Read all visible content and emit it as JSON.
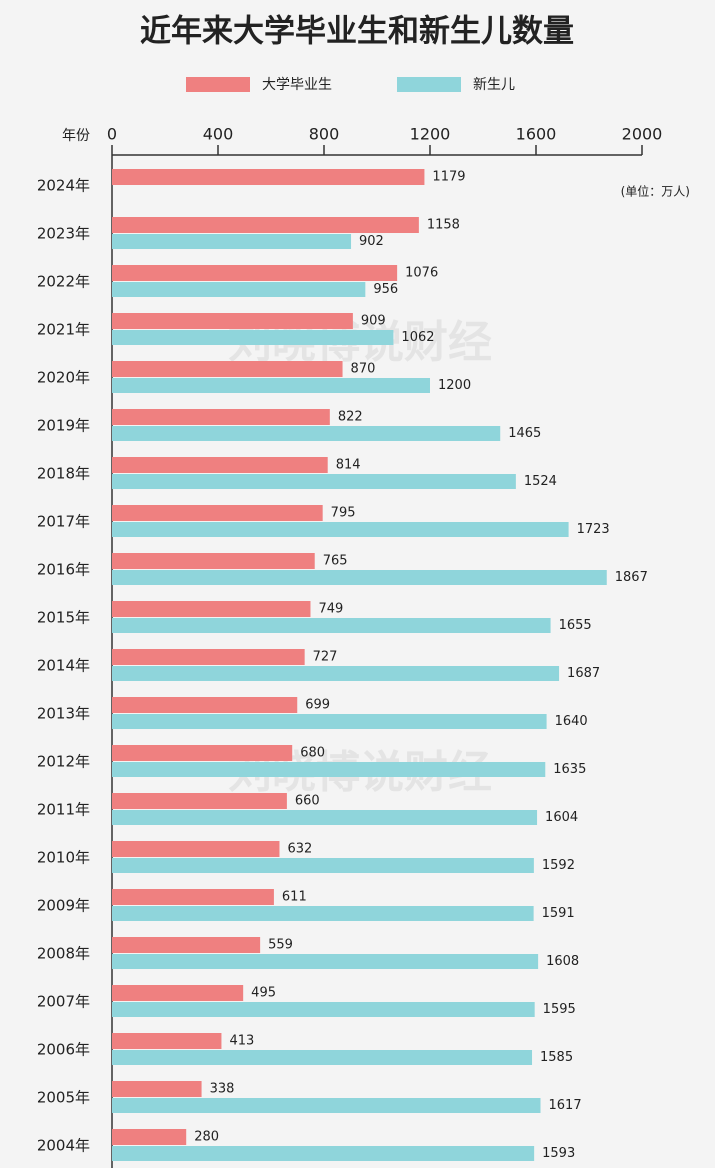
{
  "chart_data": {
    "type": "bar",
    "orientation": "horizontal",
    "title": "近年来大学毕业生和新生儿数量",
    "y_label": "年份",
    "unit_note": "(单位：万人)",
    "watermark": "刘晓博说财经",
    "categories": [
      "2024年",
      "2023年",
      "2022年",
      "2021年",
      "2020年",
      "2019年",
      "2018年",
      "2017年",
      "2016年",
      "2015年",
      "2014年",
      "2013年",
      "2012年",
      "2011年",
      "2010年",
      "2009年",
      "2008年",
      "2007年",
      "2006年",
      "2005年",
      "2004年"
    ],
    "series": [
      {
        "name": "大学毕业生",
        "color": "#ef8080",
        "values": [
          1179,
          1158,
          1076,
          909,
          870,
          822,
          814,
          795,
          765,
          749,
          727,
          699,
          680,
          660,
          632,
          611,
          559,
          495,
          413,
          338,
          280
        ]
      },
      {
        "name": "新生儿",
        "color": "#8fd5db",
        "values": [
          null,
          902,
          956,
          1062,
          1200,
          1465,
          1524,
          1723,
          1867,
          1655,
          1687,
          1640,
          1635,
          1604,
          1592,
          1591,
          1608,
          1595,
          1585,
          1617,
          1593
        ]
      }
    ],
    "xlim": [
      0,
      2000
    ],
    "xticks": [
      0,
      400,
      800,
      1200,
      1600,
      2000
    ]
  }
}
